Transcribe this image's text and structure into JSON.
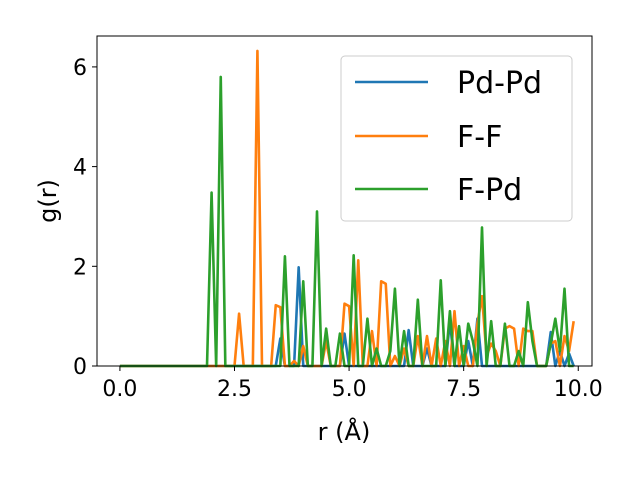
{
  "chart_data": {
    "type": "line",
    "title": "",
    "xlabel": "r (Å)",
    "ylabel": "g(r)",
    "xlim": [
      -0.5,
      10.3
    ],
    "ylim": [
      0,
      6.62
    ],
    "xticks": [
      0.0,
      2.5,
      5.0,
      7.5,
      10.0
    ],
    "xtick_labels": [
      "0.0",
      "2.5",
      "5.0",
      "7.5",
      "10.0"
    ],
    "yticks": [
      0,
      2,
      4,
      6
    ],
    "ytick_labels": [
      "0",
      "2",
      "4",
      "6"
    ],
    "grid": false,
    "legend_position": "top-right",
    "series": [
      {
        "name": "Pd-Pd",
        "color": "#1f77b4",
        "x": [
          0.0,
          3.3,
          3.4,
          3.5,
          3.6,
          3.7,
          3.8,
          3.9,
          4.0,
          4.1,
          4.6,
          4.7,
          4.8,
          4.9,
          5.0,
          5.1,
          6.2,
          6.3,
          6.4,
          6.5,
          6.6,
          6.7,
          6.8,
          6.9,
          7.0,
          7.1,
          7.2,
          7.3,
          7.4,
          7.5,
          7.6,
          7.7,
          7.8,
          7.9,
          8.0,
          8.1,
          8.9,
          9.0,
          9.1,
          9.2,
          9.3,
          9.4,
          9.5,
          9.6,
          9.7,
          9.8,
          9.9
        ],
        "values": [
          0,
          0,
          0,
          0.55,
          0,
          0,
          0,
          1.98,
          0,
          0,
          0,
          0,
          0,
          0.65,
          0,
          0,
          0,
          0.72,
          0,
          0,
          0,
          0.35,
          0,
          0,
          0,
          0,
          0.9,
          0,
          0,
          0,
          0.5,
          0,
          0.95,
          0,
          0,
          0,
          0,
          0,
          0,
          0,
          0,
          0.68,
          0,
          0.3,
          0,
          0.25,
          0
        ]
      },
      {
        "name": "F-F",
        "color": "#ff7f0e",
        "x": [
          0.0,
          2.4,
          2.5,
          2.6,
          2.7,
          2.8,
          2.9,
          3.0,
          3.1,
          3.2,
          3.3,
          3.4,
          3.5,
          3.6,
          3.7,
          3.8,
          3.9,
          4.0,
          4.1,
          4.2,
          4.3,
          4.4,
          4.5,
          4.6,
          4.7,
          4.8,
          4.9,
          5.0,
          5.1,
          5.2,
          5.3,
          5.4,
          5.5,
          5.6,
          5.7,
          5.8,
          5.9,
          6.0,
          6.1,
          6.2,
          6.3,
          6.4,
          6.5,
          6.6,
          6.7,
          6.8,
          6.9,
          7.0,
          7.1,
          7.2,
          7.3,
          7.4,
          7.5,
          7.6,
          7.7,
          7.8,
          7.9,
          8.0,
          8.1,
          8.2,
          8.3,
          8.4,
          8.5,
          8.6,
          8.7,
          8.8,
          8.9,
          9.0,
          9.1,
          9.2,
          9.3,
          9.4,
          9.5,
          9.6,
          9.7,
          9.8,
          9.9
        ],
        "values": [
          0,
          0,
          0,
          1.05,
          0,
          0,
          0,
          6.32,
          0,
          0,
          0,
          1.22,
          1.18,
          0,
          0,
          0.1,
          0,
          0.4,
          0,
          0,
          0,
          0,
          0.5,
          0,
          0,
          0,
          1.25,
          1.2,
          0,
          2.12,
          0,
          0,
          0.7,
          0,
          1.7,
          1.65,
          0,
          0.2,
          0,
          0.35,
          0,
          0,
          0.6,
          0,
          0.6,
          0,
          0.55,
          0,
          0.5,
          0,
          1.1,
          0,
          0.4,
          0,
          0,
          0.85,
          1.4,
          0.2,
          0.45,
          0.3,
          0,
          0.75,
          0.8,
          0.75,
          0,
          0.75,
          0.7,
          0.7,
          0,
          0,
          0,
          0.45,
          0.5,
          0,
          0.6,
          0.3,
          0.9
        ]
      },
      {
        "name": "F-Pd",
        "color": "#2ca02c",
        "x": [
          0.0,
          1.9,
          2.0,
          2.1,
          2.2,
          2.3,
          3.4,
          3.5,
          3.6,
          3.7,
          3.8,
          3.9,
          4.0,
          4.1,
          4.2,
          4.3,
          4.4,
          4.5,
          4.6,
          4.7,
          4.8,
          4.9,
          5.0,
          5.1,
          5.2,
          5.3,
          5.4,
          5.5,
          5.6,
          5.7,
          5.8,
          5.9,
          6.0,
          6.1,
          6.2,
          6.3,
          6.4,
          6.5,
          6.6,
          6.7,
          6.8,
          6.9,
          7.0,
          7.1,
          7.2,
          7.3,
          7.4,
          7.5,
          7.6,
          7.7,
          7.8,
          7.9,
          8.0,
          8.1,
          8.2,
          8.3,
          8.4,
          8.5,
          8.6,
          8.7,
          8.8,
          8.9,
          9.0,
          9.1,
          9.2,
          9.3,
          9.4,
          9.5,
          9.6,
          9.7,
          9.8,
          9.9
        ],
        "values": [
          0,
          0,
          3.48,
          0,
          5.8,
          0,
          0,
          0,
          2.2,
          0,
          0,
          0,
          1.7,
          0,
          0,
          3.1,
          0,
          0.75,
          0,
          0,
          0.65,
          0,
          0,
          2.22,
          0,
          0,
          0.95,
          0,
          0.35,
          0,
          0,
          0.3,
          1.55,
          0,
          0.7,
          0,
          0,
          1.33,
          0,
          0,
          0,
          0,
          1.72,
          0,
          1.1,
          0,
          0.8,
          0,
          0.85,
          0.5,
          0,
          2.78,
          0,
          0.9,
          0,
          0,
          0.85,
          0,
          0,
          0.3,
          0,
          1.28,
          0.5,
          0,
          0,
          0,
          0.45,
          0.95,
          0.3,
          1.55,
          0,
          0
        ]
      }
    ]
  }
}
